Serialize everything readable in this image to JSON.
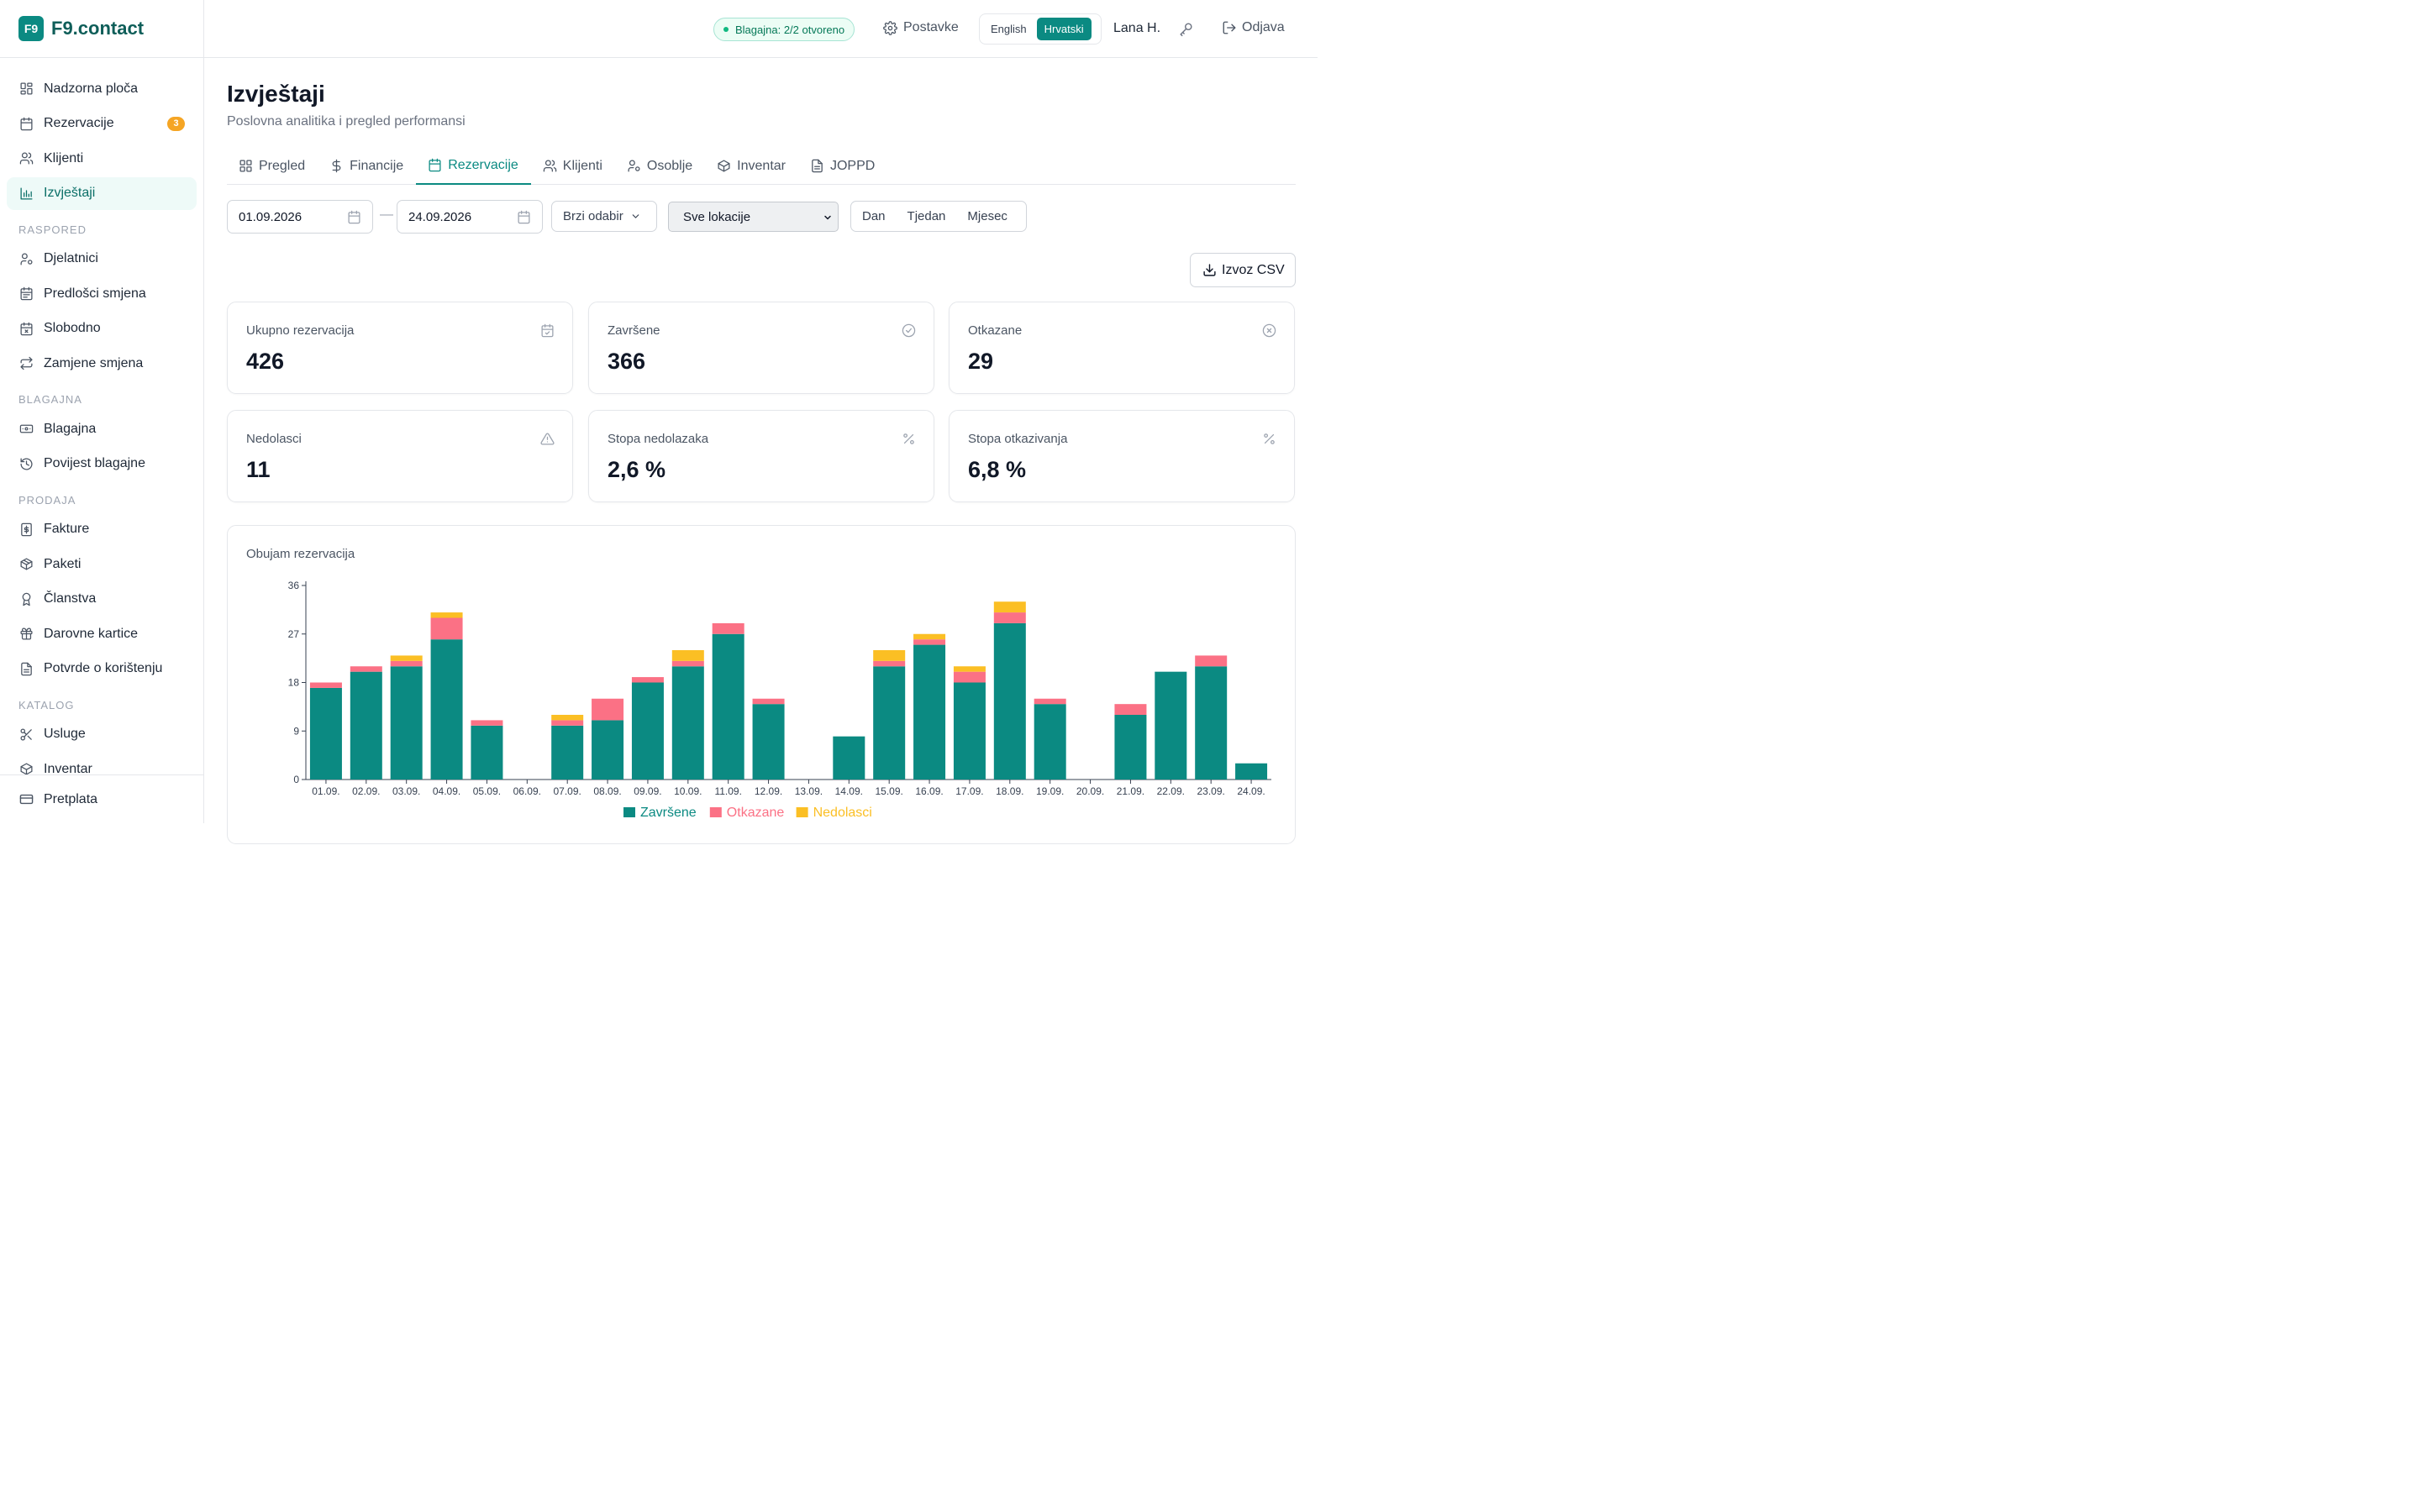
{
  "brand": {
    "logo": "F9",
    "name": "F9.contact"
  },
  "sidebar": {
    "items": [
      {
        "label": "Nadzorna ploča",
        "icon": "dashboard-icon"
      },
      {
        "label": "Rezervacije",
        "icon": "calendar-icon",
        "badge": "3"
      },
      {
        "label": "Klijenti",
        "icon": "users-icon"
      },
      {
        "label": "Izvještaji",
        "icon": "bar-chart-icon",
        "active": true
      }
    ],
    "sections": [
      {
        "title": "RASPORED",
        "items": [
          {
            "label": "Djelatnici",
            "icon": "user-cog-icon"
          },
          {
            "label": "Predlošci smjena",
            "icon": "calendar-template-icon"
          },
          {
            "label": "Slobodno",
            "icon": "calendar-off-icon"
          },
          {
            "label": "Zamjene smjena",
            "icon": "swap-icon"
          }
        ]
      },
      {
        "title": "BLAGAJNA",
        "items": [
          {
            "label": "Blagajna",
            "icon": "cash-icon"
          },
          {
            "label": "Povijest blagajne",
            "icon": "history-icon"
          }
        ]
      },
      {
        "title": "PRODAJA",
        "items": [
          {
            "label": "Fakture",
            "icon": "invoice-icon"
          },
          {
            "label": "Paketi",
            "icon": "package-icon"
          },
          {
            "label": "Članstva",
            "icon": "award-icon"
          },
          {
            "label": "Darovne kartice",
            "icon": "gift-icon"
          },
          {
            "label": "Potvrde o korištenju",
            "icon": "document-icon"
          }
        ]
      },
      {
        "title": "KATALOG",
        "items": [
          {
            "label": "Usluge",
            "icon": "scissors-icon"
          },
          {
            "label": "Inventar",
            "icon": "box-icon"
          }
        ]
      }
    ],
    "footer": {
      "label": "Pretplata",
      "icon": "credit-card-icon"
    }
  },
  "header": {
    "status": "Blagajna: 2/2 otvoreno",
    "settings": "Postavke",
    "lang_en": "English",
    "lang_hr": "Hrvatski",
    "user": "Lana H.",
    "logout": "Odjava"
  },
  "page": {
    "title": "Izvještaji",
    "subtitle": "Poslovna analitika i pregled performansi"
  },
  "tabs": [
    {
      "label": "Pregled",
      "icon": "grid-icon"
    },
    {
      "label": "Financije",
      "icon": "dollar-icon"
    },
    {
      "label": "Rezervacije",
      "icon": "calendar-icon",
      "active": true
    },
    {
      "label": "Klijenti",
      "icon": "users-icon"
    },
    {
      "label": "Osoblje",
      "icon": "user-cog-icon"
    },
    {
      "label": "Inventar",
      "icon": "box-icon"
    },
    {
      "label": "JOPPD",
      "icon": "document-icon"
    }
  ],
  "filters": {
    "date_from": "01.09.2026",
    "date_to": "24.09.2026",
    "quick_select": "Brzi odabir",
    "location": "Sve lokacije",
    "periods": [
      "Dan",
      "Tjedan",
      "Mjesec"
    ]
  },
  "export_label": "Izvoz CSV",
  "stats": [
    {
      "label": "Ukupno rezervacija",
      "value": "426",
      "icon": "calendar-check-icon"
    },
    {
      "label": "Završene",
      "value": "366",
      "icon": "check-circle-icon"
    },
    {
      "label": "Otkazane",
      "value": "29",
      "icon": "x-circle-icon"
    },
    {
      "label": "Nedolasci",
      "value": "11",
      "icon": "warning-icon"
    },
    {
      "label": "Stopa nedolazaka",
      "value": "2,6 %",
      "icon": "percent-icon"
    },
    {
      "label": "Stopa otkazivanja",
      "value": "6,8 %",
      "icon": "percent-icon"
    }
  ],
  "chart_title": "Obujam rezervacija",
  "colors": {
    "accent": "#0b8a82",
    "completed": "#0b8a82",
    "cancelled": "#fb7185",
    "noshow": "#fbbf24"
  },
  "chart_data": {
    "type": "bar",
    "stacked": true,
    "title": "Obujam rezervacija",
    "categories": [
      "01.09.",
      "02.09.",
      "03.09.",
      "04.09.",
      "05.09.",
      "06.09.",
      "07.09.",
      "08.09.",
      "09.09.",
      "10.09.",
      "11.09.",
      "12.09.",
      "13.09.",
      "14.09.",
      "15.09.",
      "16.09.",
      "17.09.",
      "18.09.",
      "19.09.",
      "20.09.",
      "21.09.",
      "22.09.",
      "23.09.",
      "24.09."
    ],
    "series": [
      {
        "name": "Završene",
        "color": "#0b8a82",
        "values": [
          17,
          20,
          21,
          26,
          10,
          0,
          10,
          11,
          18,
          21,
          27,
          14,
          0,
          8,
          21,
          25,
          18,
          29,
          14,
          0,
          12,
          20,
          21,
          3
        ]
      },
      {
        "name": "Otkazane",
        "color": "#fb7185",
        "values": [
          1,
          1,
          1,
          4,
          1,
          0,
          1,
          4,
          1,
          1,
          2,
          1,
          0,
          0,
          1,
          1,
          2,
          2,
          1,
          0,
          2,
          0,
          2,
          0
        ]
      },
      {
        "name": "Nedolasci",
        "color": "#fbbf24",
        "values": [
          0,
          0,
          1,
          1,
          0,
          0,
          1,
          0,
          0,
          2,
          0,
          0,
          0,
          0,
          2,
          1,
          1,
          2,
          0,
          0,
          0,
          0,
          0,
          0
        ]
      }
    ],
    "yticks": [
      0,
      9,
      18,
      27,
      36
    ],
    "ylim": [
      0,
      36
    ],
    "grid": false,
    "legend": "bottom"
  }
}
